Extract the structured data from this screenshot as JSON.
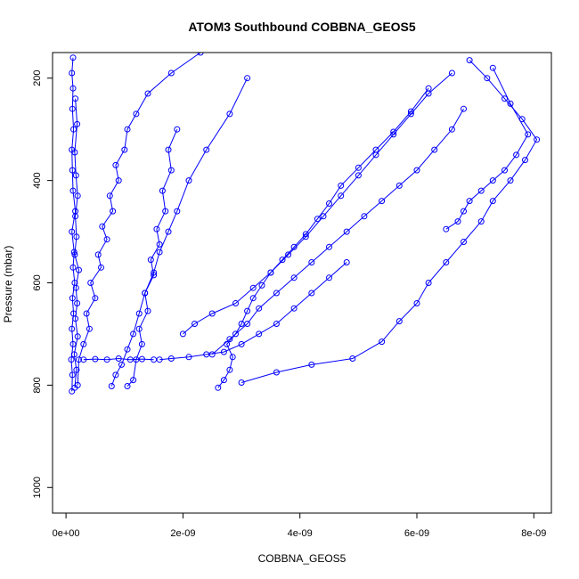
{
  "chart_data": {
    "type": "scatter",
    "title": "ATOM3 Southbound COBBNA_GEOS5",
    "xlabel": "COBBNA_GEOS5",
    "ylabel": "Pressure (mbar)",
    "xlim": [
      -2.3e-10,
      8.3e-09
    ],
    "ylim": [
      1050,
      150
    ],
    "y_reversed": true,
    "grid": false,
    "x_ticks": [
      0,
      2e-09,
      4e-09,
      6e-09,
      8e-09
    ],
    "x_tick_labels": [
      "0e+00",
      "2e-09",
      "4e-09",
      "6e-09",
      "8e-09"
    ],
    "y_ticks": [
      200,
      400,
      600,
      800,
      1000
    ],
    "y_tick_labels": [
      "200",
      "400",
      "600",
      "800",
      "1000"
    ],
    "marker": "open-circle",
    "series": [
      {
        "color": "#0000ff",
        "x": [
          1e-10,
          1.1e-10,
          9e-11,
          1.2e-10,
          1e-10,
          1.3e-10,
          1.1e-10,
          1.5e-10,
          1.2e-10,
          1.4e-10,
          1e-10,
          1.6e-10,
          1.2e-10,
          1.1e-10,
          1e-10,
          1.3e-10,
          1.1e-10,
          1.2e-10,
          1e-10,
          1.2e-10
        ],
        "y": [
          812,
          780,
          750,
          720,
          690,
          660,
          630,
          600,
          570,
          540,
          500,
          460,
          420,
          380,
          340,
          300,
          260,
          220,
          190,
          160
        ]
      },
      {
        "color": "#0000ff",
        "x": [
          1.5e-10,
          1.8e-10,
          1.4e-10,
          2e-10,
          1.6e-10,
          1.9e-10,
          1.7e-10,
          2.2e-10,
          1.5e-10,
          1.8e-10,
          1.6e-10,
          2e-10,
          1.7e-10,
          1.5e-10,
          1.9e-10,
          1.6e-10
        ],
        "y": [
          805,
          770,
          740,
          705,
          670,
          640,
          610,
          575,
          545,
          510,
          470,
          430,
          390,
          345,
          290,
          240
        ]
      },
      {
        "color": "#0000ff",
        "x": [
          2e-10,
          2.2e-10,
          3e-10,
          4e-10,
          3.5e-10,
          5e-10,
          4.2e-10,
          6e-10,
          5.5e-10,
          7e-10,
          6.2e-10,
          8e-10,
          7.5e-10,
          9e-10,
          8.5e-10,
          1e-09,
          1.05e-09,
          1.2e-09,
          1.4e-09,
          1.8e-09,
          2.3e-09
        ],
        "y": [
          800,
          750,
          720,
          690,
          660,
          630,
          600,
          570,
          545,
          515,
          490,
          460,
          430,
          400,
          370,
          340,
          300,
          270,
          230,
          190,
          150
        ]
      },
      {
        "color": "#0000ff",
        "x": [
          7.8e-10,
          8.5e-10,
          9.5e-10,
          1.05e-09,
          1.15e-09,
          1.25e-09,
          1.35e-09,
          1.5e-09,
          1.6e-09,
          1.75e-09,
          1.9e-09,
          2.1e-09,
          2.4e-09,
          2.8e-09,
          3.1e-09
        ],
        "y": [
          802,
          780,
          760,
          730,
          700,
          660,
          620,
          580,
          540,
          500,
          460,
          400,
          340,
          270,
          200
        ]
      },
      {
        "color": "#0000ff",
        "x": [
          1.05e-09,
          1.15e-09,
          1.2e-09,
          1.3e-09,
          1.25e-09,
          1.4e-09,
          1.35e-09,
          1.5e-09,
          1.45e-09,
          1.6e-09,
          1.55e-09,
          1.7e-09,
          1.65e-09,
          1.8e-09,
          1.75e-09,
          1.9e-09
        ],
        "y": [
          802,
          790,
          750,
          720,
          690,
          655,
          620,
          585,
          555,
          525,
          495,
          460,
          420,
          380,
          340,
          300
        ]
      },
      {
        "color": "#0000ff",
        "x": [
          2.6e-09,
          2.7e-09,
          2.8e-09,
          2.85e-09,
          2.75e-09,
          2.9e-09,
          3e-09,
          3.1e-09,
          3.2e-09,
          3.35e-09,
          3.5e-09,
          3.7e-09,
          3.9e-09,
          4.1e-09,
          4.3e-09,
          4.5e-09,
          4.7e-09,
          5e-09,
          5.3e-09,
          5.6e-09,
          5.9e-09,
          6.2e-09
        ],
        "y": [
          805,
          790,
          770,
          745,
          720,
          700,
          680,
          655,
          630,
          605,
          580,
          555,
          530,
          505,
          475,
          445,
          410,
          375,
          340,
          305,
          265,
          220
        ]
      },
      {
        "color": "#0000ff",
        "x": [
          3e-09,
          3.6e-09,
          4.2e-09,
          4.9e-09,
          5.4e-09,
          5.7e-09,
          6e-09,
          6.2e-09,
          6.5e-09,
          6.8e-09,
          7.1e-09,
          7.3e-09,
          7.6e-09,
          7.85e-09,
          8.05e-09,
          7.8e-09,
          7.5e-09,
          7.2e-09,
          6.9e-09
        ],
        "y": [
          795,
          775,
          760,
          748,
          715,
          675,
          640,
          600,
          560,
          520,
          480,
          440,
          400,
          360,
          320,
          280,
          240,
          200,
          165
        ]
      },
      {
        "color": "#0000ff",
        "x": [
          2.5e-09,
          2.8e-09,
          3.1e-09,
          3.3e-09,
          3.6e-09,
          3.9e-09,
          4.2e-09,
          4.5e-09,
          4.8e-09,
          5.1e-09,
          5.4e-09,
          5.7e-09,
          6e-09,
          6.3e-09,
          6.6e-09,
          6.8e-09
        ],
        "y": [
          740,
          710,
          680,
          650,
          620,
          590,
          560,
          530,
          500,
          470,
          440,
          410,
          380,
          340,
          300,
          260
        ]
      },
      {
        "color": "#0000ff",
        "x": [
          2e-09,
          2.2e-09,
          2.5e-09,
          2.9e-09,
          3.2e-09,
          3.5e-09,
          3.8e-09,
          4.1e-09,
          4.4e-09,
          4.7e-09,
          5e-09,
          5.3e-09,
          5.6e-09,
          5.9e-09,
          6.2e-09,
          6.6e-09
        ],
        "y": [
          700,
          680,
          660,
          640,
          610,
          580,
          545,
          510,
          470,
          430,
          390,
          350,
          310,
          270,
          230,
          190
        ]
      },
      {
        "color": "#0000ff",
        "x": [
          6.5e-09,
          6.7e-09,
          6.8e-09,
          6.9e-09,
          7.1e-09,
          7.3e-09,
          7.5e-09,
          7.7e-09,
          7.9e-09,
          7.6e-09,
          7.3e-09
        ],
        "y": [
          495,
          480,
          460,
          440,
          420,
          400,
          380,
          350,
          310,
          250,
          180
        ]
      },
      {
        "color": "#0000ff",
        "x": [
          1.6e-09,
          1.8e-09,
          2.1e-09,
          2.4e-09,
          2.7e-09,
          3e-09,
          3.3e-09,
          3.6e-09,
          3.9e-09,
          4.2e-09,
          4.5e-09,
          4.8e-09
        ],
        "y": [
          750,
          748,
          745,
          740,
          735,
          720,
          700,
          680,
          650,
          620,
          590,
          560
        ]
      },
      {
        "color": "#0000ff",
        "x": [
          3e-10,
          5e-10,
          7e-10,
          9e-10,
          1.1e-09,
          1.3e-09,
          1.5e-09
        ],
        "y": [
          750,
          749,
          750,
          748,
          750,
          749,
          750
        ]
      }
    ]
  }
}
